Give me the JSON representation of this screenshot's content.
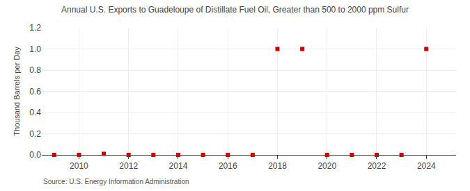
{
  "chart_data": {
    "type": "scatter",
    "title": "Annual U.S. Exports to Guadeloupe of Distillate Fuel Oil, Greater than 500 to 2000 ppm Sulfur",
    "ylabel": "Thousand Barrels per Day",
    "annotations": [
      "Source: U.S. Energy Information Administration"
    ],
    "x": [
      2009,
      2010,
      2011,
      2012,
      2013,
      2014,
      2015,
      2016,
      2017,
      2018,
      2019,
      2020,
      2021,
      2022,
      2023,
      2024
    ],
    "values": [
      0.0,
      0.0,
      0.01,
      0.0,
      0.0,
      0.0,
      0.0,
      0.0,
      0.0,
      1.0,
      1.0,
      0.0,
      0.0,
      0.0,
      0.0,
      1.0
    ],
    "color": "#cc0000",
    "marker": "square",
    "xlim": [
      2008.5,
      2025.2
    ],
    "xticks": [
      2010,
      2012,
      2014,
      2016,
      2018,
      2020,
      2022,
      2024
    ],
    "ylim": [
      0.0,
      1.2
    ],
    "yticks": [
      {
        "value": 0,
        "label": "0.0"
      },
      0.2,
      0.4,
      0.6,
      0.8,
      {
        "value": 1,
        "label": "1.0"
      },
      1.2
    ],
    "grid": true
  }
}
